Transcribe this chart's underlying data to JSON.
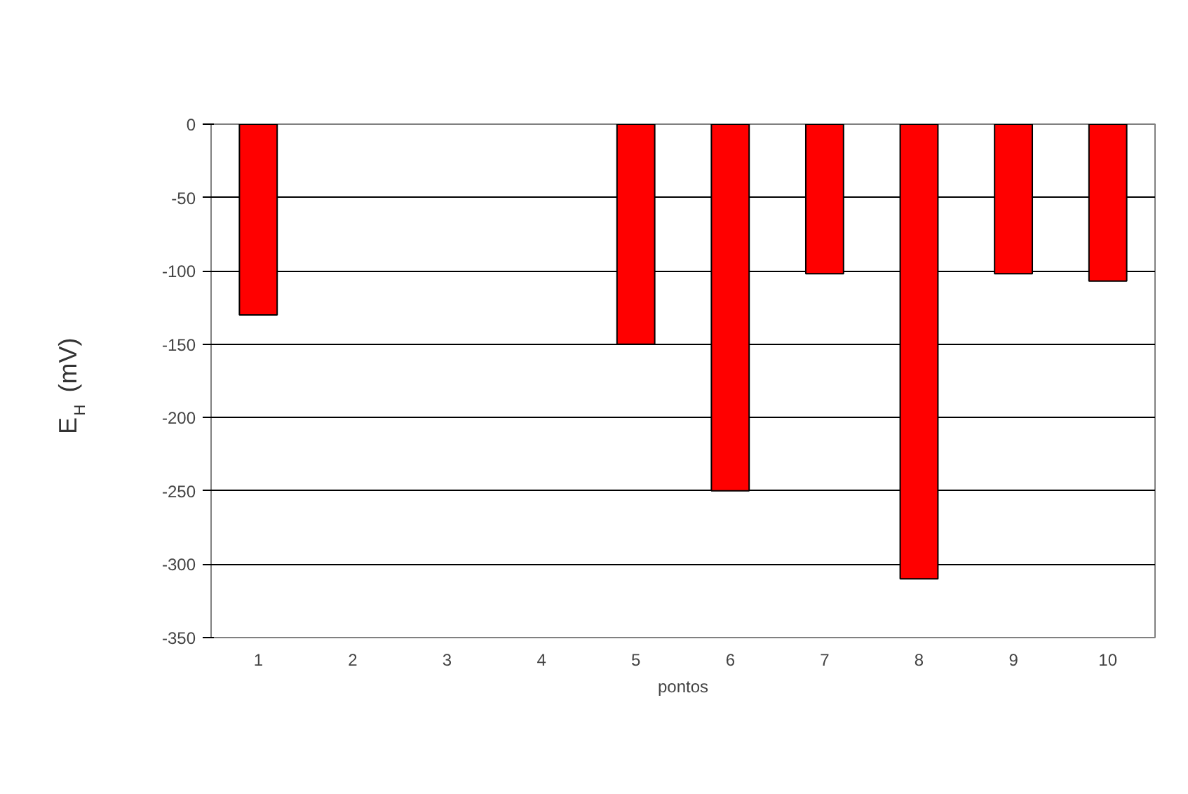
{
  "chart_data": {
    "type": "bar",
    "xlabel": "pontos",
    "ylabel": "E$_{H}$ (mV)",
    "categories": [
      "1",
      "2",
      "3",
      "4",
      "5",
      "6",
      "7",
      "8",
      "9",
      "10"
    ],
    "values": [
      -130,
      null,
      null,
      null,
      -150,
      -250,
      -102,
      -310,
      -102,
      -107
    ],
    "color": "#ff0000",
    "ylim": [
      -350,
      0
    ],
    "yticks": [
      -350,
      -300,
      -250,
      -200,
      -150,
      -100,
      -50,
      0
    ],
    "grid": "y"
  }
}
